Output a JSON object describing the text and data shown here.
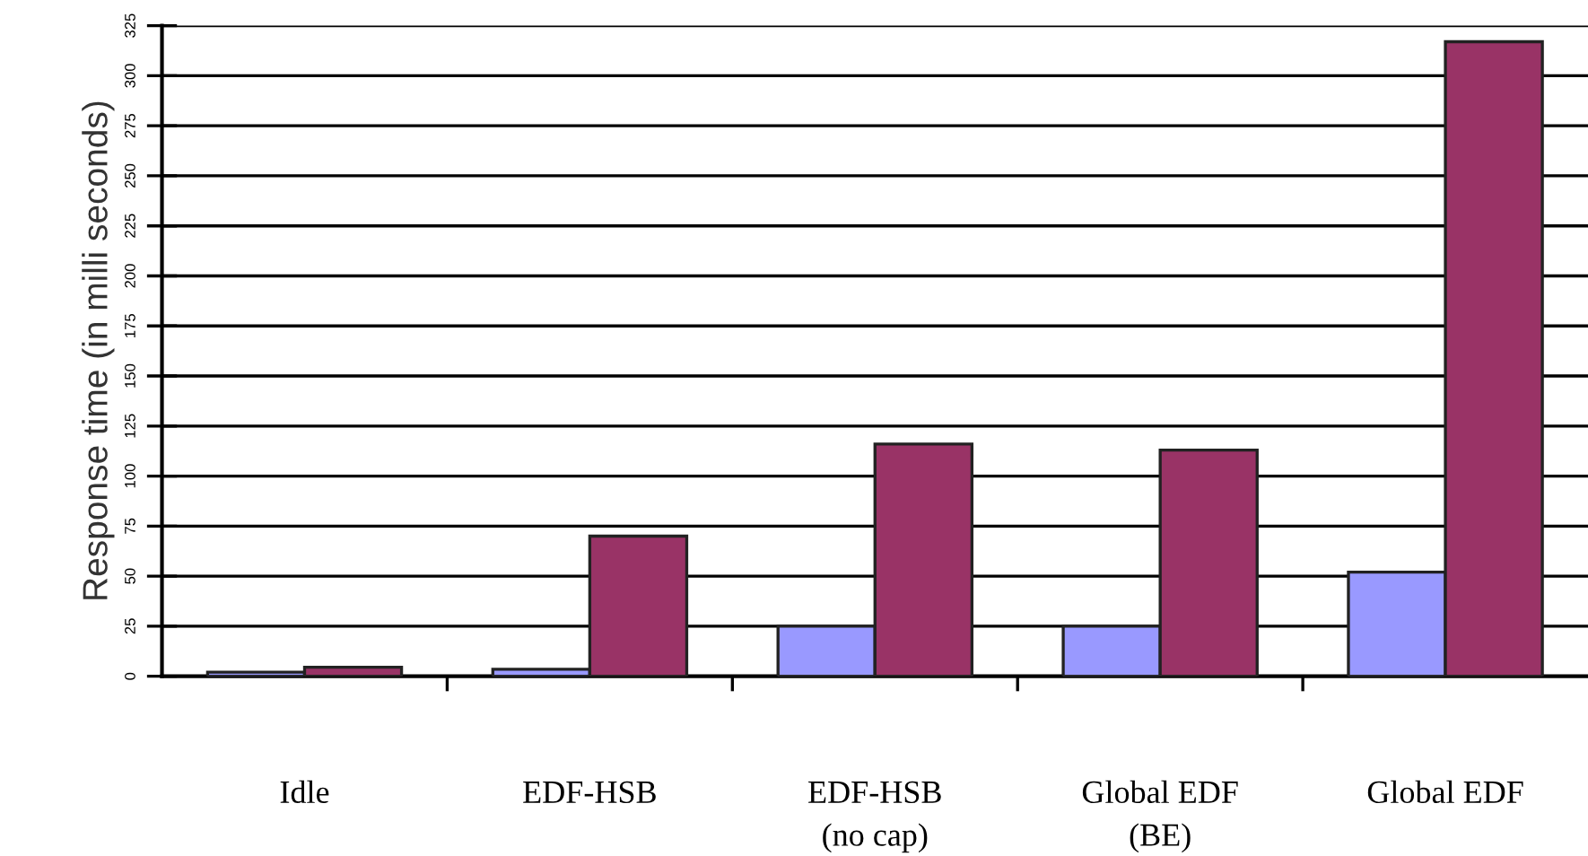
{
  "chart_data": {
    "type": "bar",
    "ylabel": "Response time (in milli seconds)",
    "categories": [
      "Idle",
      "EDF-HSB",
      "EDF-HSB\n(no cap)",
      "Global EDF\n(BE)",
      "Global EDF"
    ],
    "series": [
      {
        "color": "#9999ff",
        "values": [
          2,
          3.5,
          25,
          25,
          52
        ]
      },
      {
        "color": "#993366",
        "values": [
          4.5,
          70,
          116,
          113,
          317
        ]
      }
    ],
    "ylim": [
      0,
      325
    ],
    "yticks": [
      0,
      25,
      50,
      75,
      100,
      125,
      150,
      175,
      200,
      225,
      250,
      275,
      300,
      325
    ],
    "grid": "y",
    "legend": false
  }
}
